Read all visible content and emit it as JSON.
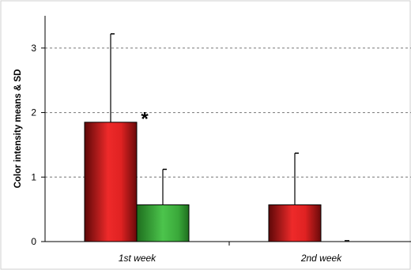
{
  "chart_data": {
    "type": "bar",
    "ylabel": "Color intensity means & SD",
    "xlabel": "",
    "title": "",
    "categories": [
      "1st week",
      "2nd week"
    ],
    "ylim": [
      0,
      3.5
    ],
    "yticks": [
      0,
      1,
      2,
      3
    ],
    "grid": true,
    "legend": "none",
    "series": [
      {
        "color": "#d42020",
        "values": [
          1.85,
          0.57
        ],
        "errors": [
          1.37,
          0.8
        ]
      },
      {
        "color": "#3fae3f",
        "values": [
          0.57,
          0.01
        ],
        "errors": [
          0.55,
          0.0
        ]
      }
    ],
    "annotations": [
      {
        "text": "*",
        "category": "1st week",
        "value": 1.95
      }
    ]
  }
}
